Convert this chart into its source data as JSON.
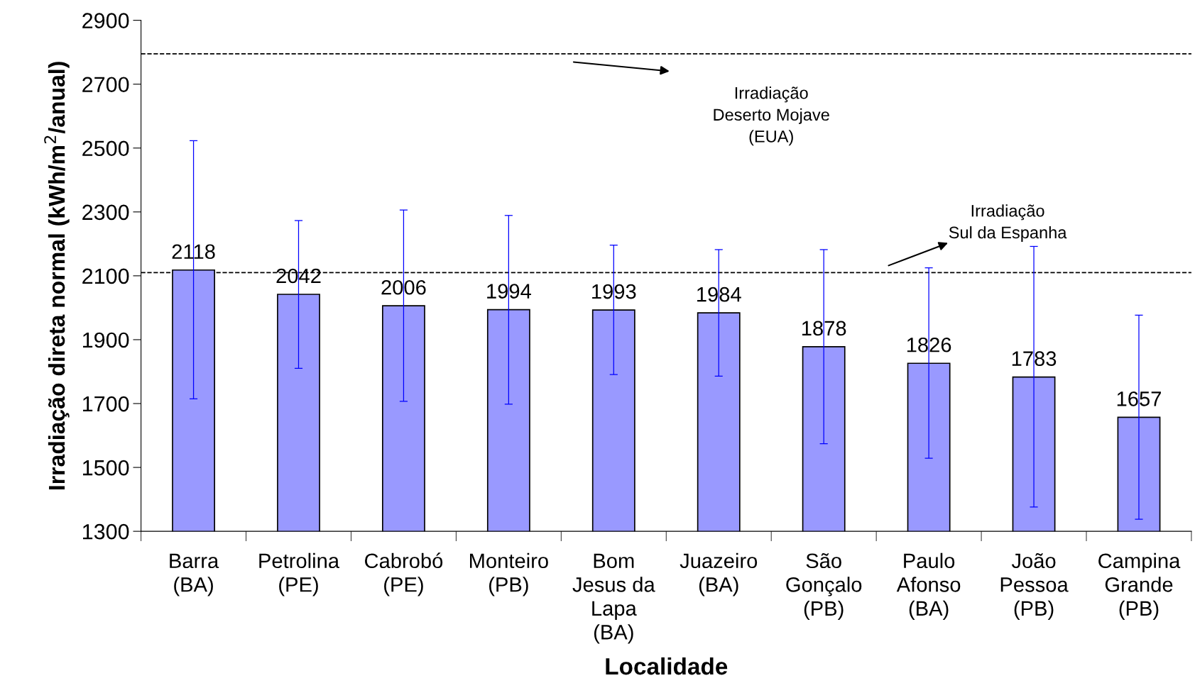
{
  "chart_data": {
    "type": "bar",
    "xlabel": "Localidade",
    "ylabel": "Irradiação direta normal (kWh/m$^{2}$/anual)",
    "categories": [
      "Barra\n(BA)",
      "Petrolina\n(PE)",
      "Cabrobó\n(PE)",
      "Monteiro\n(PB)",
      "Bom\nJesus da\nLapa\n(BA)",
      "Juazeiro\n(BA)",
      "São\nGonçalo\n(PB)",
      "Paulo\nAfonso\n(BA)",
      "João\nPessoa\n(PB)",
      "Campina\nGrande\n(PB)"
    ],
    "values": [
      2118,
      2042,
      2006,
      1994,
      1993,
      1984,
      1878,
      1826,
      1783,
      1657
    ],
    "errors": [
      [
        1715,
        2523
      ],
      [
        1810,
        2273
      ],
      [
        1707,
        2306
      ],
      [
        1698,
        2289
      ],
      [
        1791,
        2196
      ],
      [
        1786,
        2182
      ],
      [
        1574,
        2182
      ],
      [
        1529,
        2125
      ],
      [
        1376,
        2192
      ],
      [
        1338,
        1977
      ]
    ],
    "color": "#9999ff",
    "data_labels": true,
    "ylim": [
      1300,
      2900
    ],
    "yticks": [
      1300,
      1500,
      1700,
      1900,
      2100,
      2300,
      2500,
      2700,
      2900
    ],
    "ref_lines": [
      {
        "axis": "y",
        "value": 2795,
        "label": "Irradiação\nDeserto Mojave\n(EUA)",
        "color": "#000000",
        "line_style": "dashed"
      },
      {
        "axis": "y",
        "value": 2110,
        "label": "Irradiação\nSul da Espanha",
        "color": "#000000",
        "line_style": "dashed"
      }
    ],
    "grid": false,
    "legend": false
  }
}
